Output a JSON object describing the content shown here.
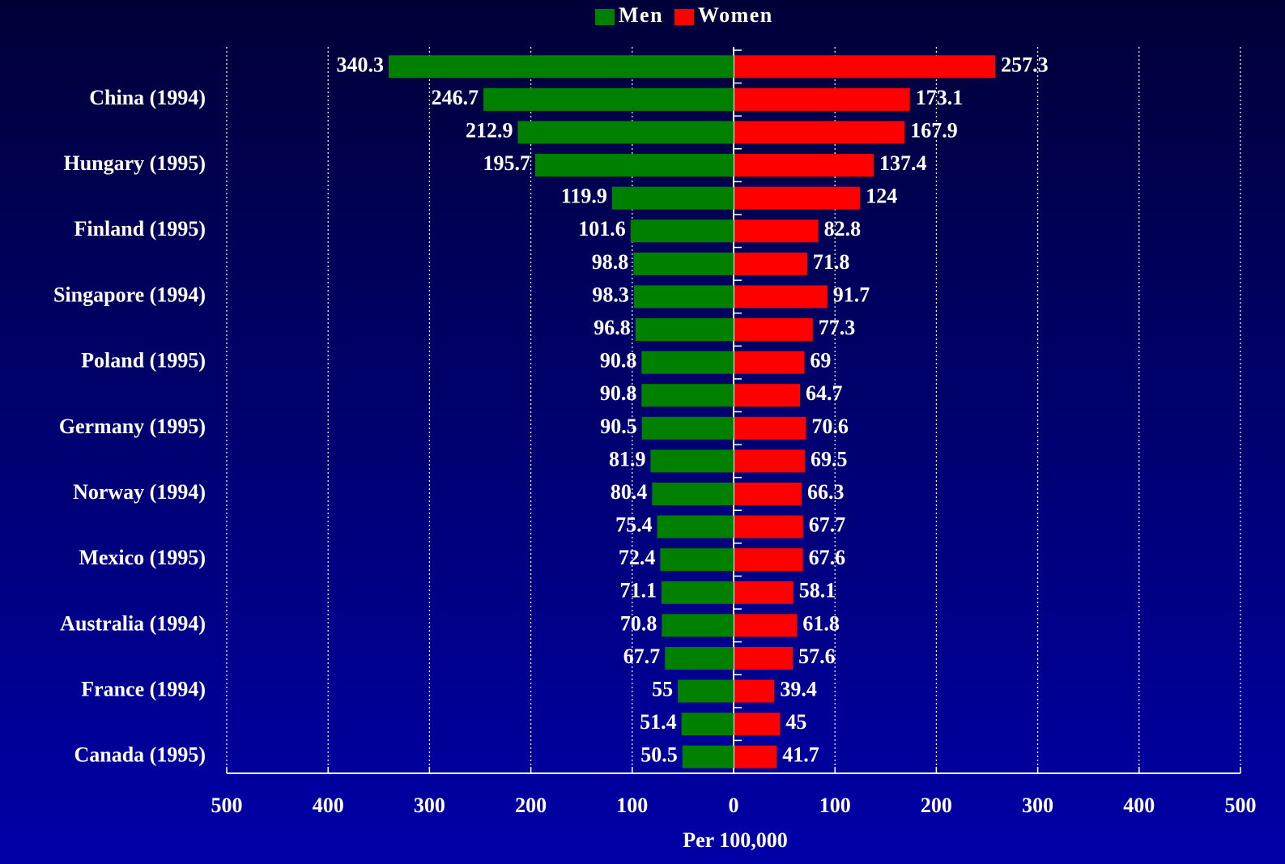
{
  "chart_data": {
    "type": "butterfly",
    "xlabel": "Per 100,000",
    "categories": [
      null,
      "China (1994)",
      null,
      "Hungary (1995)",
      null,
      "Finland (1995)",
      null,
      "Singapore (1994)",
      null,
      "Poland (1995)",
      null,
      "Germany (1995)",
      null,
      "Norway (1994)",
      null,
      "Mexico (1995)",
      null,
      "Australia (1994)",
      null,
      "France (1994)",
      null,
      "Canada (1995)"
    ],
    "series": [
      {
        "name": "Men",
        "color": "#008000",
        "values": [
          340.3,
          246.7,
          212.9,
          195.7,
          119.9,
          101.6,
          98.8,
          98.3,
          96.8,
          90.8,
          90.8,
          90.5,
          81.9,
          80.4,
          75.4,
          72.4,
          71.1,
          70.8,
          67.7,
          55,
          51.4,
          50.5
        ]
      },
      {
        "name": "Women",
        "color": "#ff0000",
        "values": [
          257.3,
          173.1,
          167.9,
          137.4,
          124,
          82.8,
          71.8,
          91.7,
          77.3,
          69,
          64.7,
          70.6,
          69.5,
          66.3,
          67.7,
          67.6,
          58.1,
          61.8,
          57.6,
          39.4,
          45,
          41.7
        ]
      }
    ],
    "xlim": [
      -500,
      500
    ],
    "xticks": [
      {
        "value": -500,
        "label": "500"
      },
      {
        "value": -400,
        "label": "400"
      },
      {
        "value": -300,
        "label": "300"
      },
      {
        "value": -200,
        "label": "200"
      },
      {
        "value": -100,
        "label": "100"
      },
      0,
      100,
      200,
      300,
      400,
      500
    ],
    "grid": true,
    "legend": "top"
  }
}
